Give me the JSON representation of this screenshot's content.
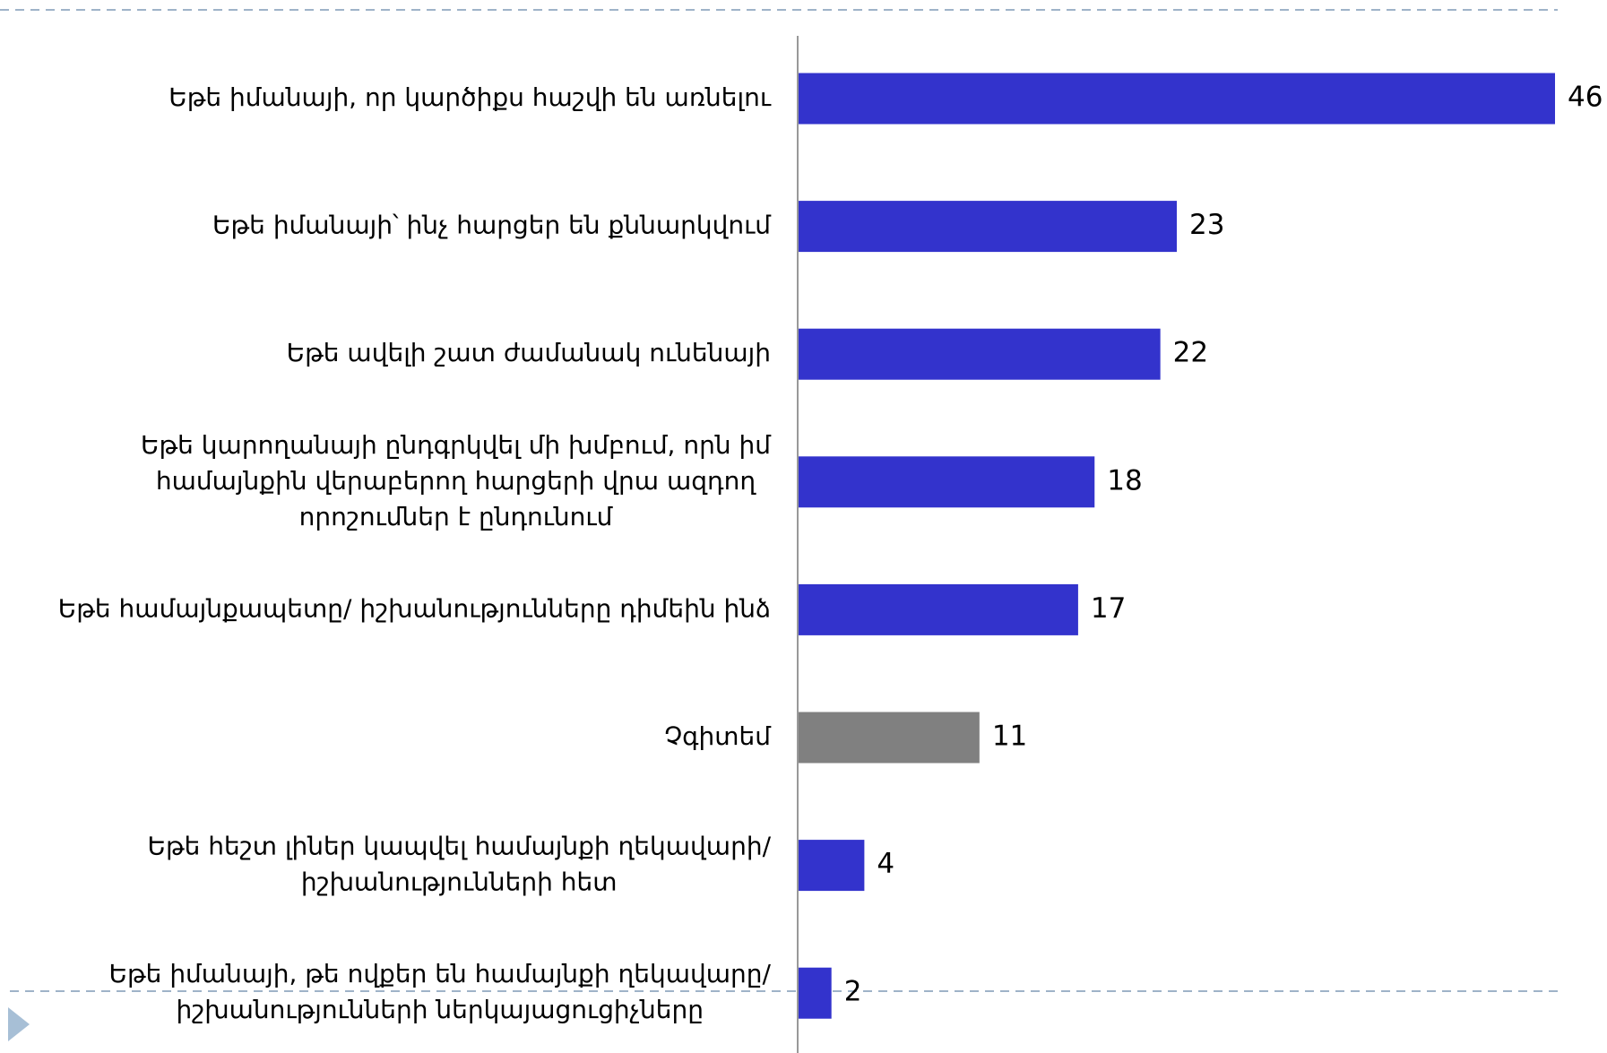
{
  "chart_data": {
    "type": "bar",
    "orientation": "horizontal",
    "categories": [
      "Եթե իմանայի, որ կարծիքս հաշվի են առնելու",
      "Եթե իմանայի՝ ինչ հարցեր են քննարկվում",
      "Եթե ավելի շատ ժամանակ ունենայի",
      "Եթե կարողանայի ընդգրկվել մի խմբում, որն իմ\nհամայնքին  վերաբերող հարցերի վրա  ազդող\nորոշումներ է ընդունում",
      "Եթե համայնքապետը/ իշխանությունները դիմեին ինձ",
      "Չգիտեմ",
      "Եթե հեշտ լիներ կապվել համայնքի ղեկավարի/\nիշխանությունների հետ",
      "Եթե իմանայի, թե ովքեր են համայնքի ղեկավարը/\nիշխանությունների ներկայացուցիչները"
    ],
    "values": [
      46,
      23,
      22,
      18,
      17,
      11,
      4,
      2
    ],
    "colors": [
      "#3333cc",
      "#3333cc",
      "#3333cc",
      "#3333cc",
      "#3333cc",
      "#808080",
      "#3333cc",
      "#3333cc"
    ]
  }
}
